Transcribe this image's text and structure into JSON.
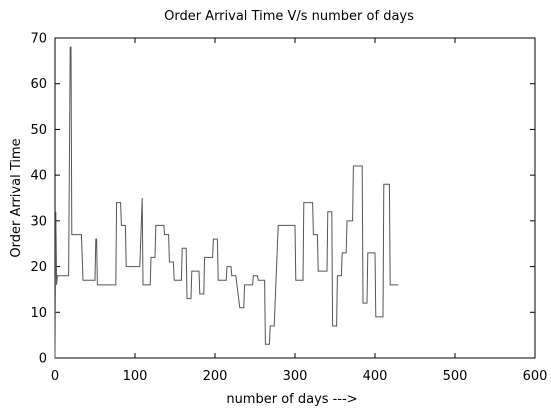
{
  "chart_data": {
    "type": "line",
    "title": "Order Arrival Time V/s number of days",
    "xlabel": "number of days --->",
    "ylabel": "Order Arrival Time",
    "xlim": [
      0,
      600
    ],
    "ylim": [
      0,
      70
    ],
    "x_ticks": [
      0,
      100,
      200,
      300,
      400,
      500,
      600
    ],
    "y_ticks": [
      0,
      10,
      20,
      30,
      40,
      50,
      60,
      70
    ],
    "x_tick_labels": [
      "0",
      "100",
      "200",
      "300",
      "400",
      "500",
      "600"
    ],
    "y_tick_labels": [
      "0",
      "10",
      "20",
      "30",
      "40",
      "50",
      "60",
      "70"
    ],
    "grid": false,
    "line_color": "#555555",
    "series": [
      {
        "points": [
          [
            0,
            0
          ],
          [
            1,
            32
          ],
          [
            2,
            16
          ],
          [
            3,
            18
          ],
          [
            8,
            18
          ],
          [
            13,
            18
          ],
          [
            15,
            18
          ],
          [
            17,
            18
          ],
          [
            19,
            68
          ],
          [
            20,
            68
          ],
          [
            21,
            27
          ],
          [
            24,
            27
          ],
          [
            28,
            27
          ],
          [
            33,
            27
          ],
          [
            35,
            17
          ],
          [
            40,
            17
          ],
          [
            45,
            17
          ],
          [
            50,
            17
          ],
          [
            51,
            26
          ],
          [
            52,
            26
          ],
          [
            53,
            16
          ],
          [
            58,
            16
          ],
          [
            64,
            16
          ],
          [
            70,
            16
          ],
          [
            76,
            16
          ],
          [
            77,
            34
          ],
          [
            82,
            34
          ],
          [
            83,
            29
          ],
          [
            88,
            29
          ],
          [
            89,
            20
          ],
          [
            95,
            20
          ],
          [
            100,
            20
          ],
          [
            106,
            20
          ],
          [
            109,
            35
          ],
          [
            110,
            16
          ],
          [
            114,
            16
          ],
          [
            119,
            16
          ],
          [
            120,
            22
          ],
          [
            125,
            22
          ],
          [
            126,
            29
          ],
          [
            131,
            29
          ],
          [
            136,
            29
          ],
          [
            137,
            27
          ],
          [
            142,
            27
          ],
          [
            143,
            21
          ],
          [
            148,
            21
          ],
          [
            149,
            17
          ],
          [
            154,
            17
          ],
          [
            158,
            17
          ],
          [
            159,
            24
          ],
          [
            164,
            24
          ],
          [
            165,
            13
          ],
          [
            170,
            13
          ],
          [
            171,
            19
          ],
          [
            176,
            19
          ],
          [
            180,
            19
          ],
          [
            181,
            14
          ],
          [
            186,
            14
          ],
          [
            187,
            22
          ],
          [
            192,
            22
          ],
          [
            197,
            22
          ],
          [
            198,
            26
          ],
          [
            203,
            26
          ],
          [
            204,
            17
          ],
          [
            209,
            17
          ],
          [
            214,
            17
          ],
          [
            215,
            20
          ],
          [
            220,
            20
          ],
          [
            221,
            18
          ],
          [
            226,
            18
          ],
          [
            231,
            11
          ],
          [
            236,
            11
          ],
          [
            237,
            16
          ],
          [
            242,
            16
          ],
          [
            247,
            16
          ],
          [
            248,
            18
          ],
          [
            253,
            18
          ],
          [
            254,
            17
          ],
          [
            259,
            17
          ],
          [
            262,
            17
          ],
          [
            263,
            3
          ],
          [
            268,
            3
          ],
          [
            269,
            7
          ],
          [
            274,
            7
          ],
          [
            279,
            29
          ],
          [
            284,
            29
          ],
          [
            290,
            29
          ],
          [
            296,
            29
          ],
          [
            300,
            29
          ],
          [
            301,
            17
          ],
          [
            306,
            17
          ],
          [
            310,
            17
          ],
          [
            311,
            34
          ],
          [
            316,
            34
          ],
          [
            322,
            34
          ],
          [
            323,
            27
          ],
          [
            328,
            27
          ],
          [
            329,
            19
          ],
          [
            334,
            19
          ],
          [
            340,
            19
          ],
          [
            341,
            32
          ],
          [
            346,
            32
          ],
          [
            347,
            7
          ],
          [
            352,
            7
          ],
          [
            353,
            18
          ],
          [
            358,
            18
          ],
          [
            359,
            23
          ],
          [
            364,
            23
          ],
          [
            365,
            30
          ],
          [
            370,
            30
          ],
          [
            372,
            30
          ],
          [
            373,
            42
          ],
          [
            378,
            42
          ],
          [
            384,
            42
          ],
          [
            385,
            12
          ],
          [
            390,
            12
          ],
          [
            391,
            23
          ],
          [
            396,
            23
          ],
          [
            400,
            23
          ],
          [
            401,
            9
          ],
          [
            406,
            9
          ],
          [
            410,
            9
          ],
          [
            411,
            38
          ],
          [
            416,
            38
          ],
          [
            418,
            38
          ],
          [
            419,
            16
          ],
          [
            424,
            16
          ],
          [
            429,
            16
          ]
        ]
      }
    ]
  }
}
